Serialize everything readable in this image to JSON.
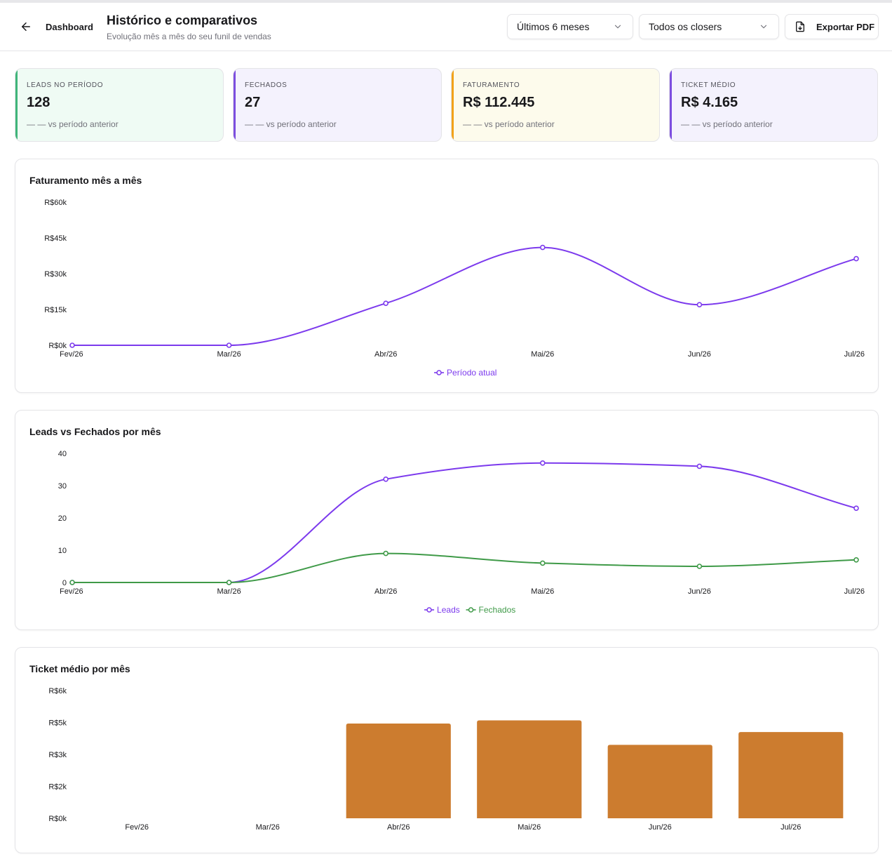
{
  "header": {
    "back_label": "Dashboard",
    "title": "Histórico e comparativos",
    "subtitle": "Evolução mês a mês do seu funil de vendas",
    "period_select": "Últimos 6 meses",
    "closer_select": "Todos os closers",
    "export_label": "Exportar PDF"
  },
  "kpis": [
    {
      "label": "LEADS NO PERÍODO",
      "value": "128",
      "delta": "— — vs período anterior",
      "accent": "#3fb57a",
      "bg": "#effbf4"
    },
    {
      "label": "FECHADOS",
      "value": "27",
      "delta": "— — vs período anterior",
      "accent": "#7c4ddf",
      "bg": "#f4f2fd"
    },
    {
      "label": "FATURAMENTO",
      "value": "R$ 112.445",
      "delta": "— — vs período anterior",
      "accent": "#f2a218",
      "bg": "#fdfbec"
    },
    {
      "label": "TICKET MÉDIO",
      "value": "R$ 4.165",
      "delta": "— — vs período anterior",
      "accent": "#7c4ddf",
      "bg": "#f4f2fd"
    }
  ],
  "chart_data": [
    {
      "type": "line",
      "title": "Faturamento mês a mês",
      "categories": [
        "Fev/26",
        "Mar/26",
        "Abr/26",
        "Mai/26",
        "Jun/26",
        "Jul/26"
      ],
      "series": [
        {
          "name": "Período atual",
          "values": [
            0,
            0,
            17600,
            41000,
            17000,
            36300
          ],
          "color": "#7c3aed"
        }
      ],
      "ylim": [
        0,
        60000
      ],
      "yticks": [
        0,
        15000,
        30000,
        45000,
        60000
      ],
      "ytick_labels": [
        "R$0k",
        "R$15k",
        "R$30k",
        "R$45k",
        "R$60k"
      ],
      "legend": "bottom-center",
      "grid": false
    },
    {
      "type": "line",
      "title": "Leads vs Fechados por mês",
      "categories": [
        "Fev/26",
        "Mar/26",
        "Abr/26",
        "Mai/26",
        "Jun/26",
        "Jul/26"
      ],
      "series": [
        {
          "name": "Leads",
          "values": [
            0,
            0,
            32,
            37,
            36,
            23
          ],
          "color": "#7c3aed"
        },
        {
          "name": "Fechados",
          "values": [
            0,
            0,
            9,
            6,
            5,
            7
          ],
          "color": "#3f9a48"
        }
      ],
      "ylim": [
        0,
        40
      ],
      "yticks": [
        0,
        10,
        20,
        30,
        40
      ],
      "ytick_labels": [
        "0",
        "10",
        "20",
        "30",
        "40"
      ],
      "legend": "bottom-center",
      "grid": false
    },
    {
      "type": "bar",
      "title": "Ticket médio por mês",
      "categories": [
        "Fev/26",
        "Mar/26",
        "Abr/26",
        "Mai/26",
        "Jun/26",
        "Jul/26"
      ],
      "values": [
        0,
        0,
        4450,
        4600,
        3450,
        4050
      ],
      "color": "#cc7c2f",
      "ylim": [
        0,
        6000
      ],
      "ytick_labels": [
        "R$0k",
        "R$2k",
        "R$3k",
        "R$5k",
        "R$6k"
      ],
      "grid": false
    }
  ]
}
